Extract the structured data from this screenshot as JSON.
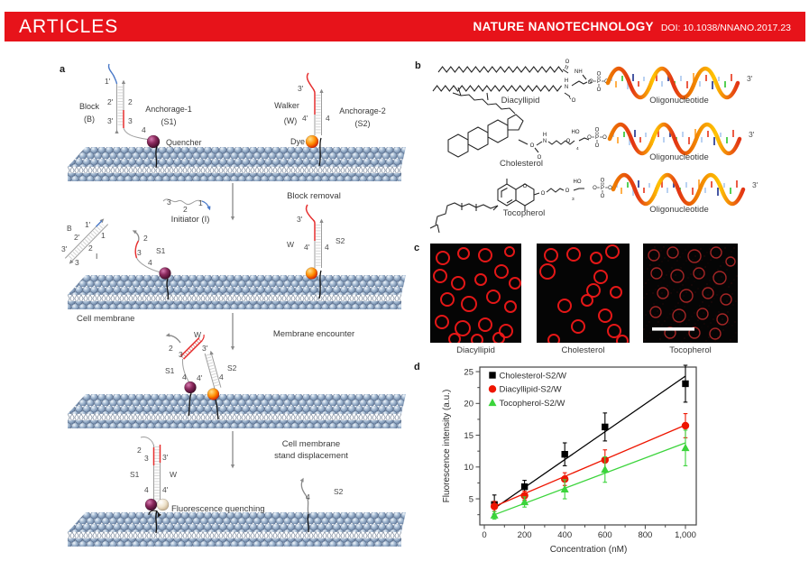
{
  "header": {
    "articles": "ARTICLES",
    "journal": "NATURE NANOTECHNOLOGY",
    "doi": "DOI: 10.1038/NNANO.2017.23",
    "bar_color": "#e7131a"
  },
  "panel_a": {
    "label": "a",
    "block": "Block",
    "block_abbr": "(B)",
    "anchorage1": "Anchorage-1",
    "s1_abbr": "(S1)",
    "quencher": "Quencher",
    "walker": "Walker",
    "walker_abbr": "(W)",
    "anchorage2": "Anchorage-2",
    "s2_abbr": "(S2)",
    "dye": "Dye",
    "initiator": "Initiator (I)",
    "block_removal": "Block removal",
    "cell_membrane": "Cell membrane",
    "membrane_encounter": "Membrane encounter",
    "displacement1": "Cell membrane",
    "displacement2": "stand displacement",
    "fluor_quench": "Fluorescence quenching",
    "s1": "S1",
    "s2": "S2",
    "w": "W",
    "b": "B",
    "i": "I",
    "n1": "1",
    "n2": "2",
    "n3": "3",
    "n4": "4",
    "p1": "1'",
    "p2": "2'",
    "p3": "3'",
    "p4": "4'"
  },
  "panel_b": {
    "label": "b",
    "lipid1": "Diacyllipid",
    "lipid2": "Cholesterol",
    "lipid3": "Tocopherol",
    "oligo": "Oligonucleotide",
    "three_prime": "3'",
    "atoms": {
      "o": "O",
      "p": "P",
      "n": "N",
      "h": "H",
      "nh": "NH",
      "ho": "HO",
      "sub4": "4",
      "sub3": "3"
    }
  },
  "panel_c": {
    "label": "c",
    "caption1": "Diacyllipid",
    "caption2": "Cholesterol",
    "caption3": "Tocopherol"
  },
  "panel_d": {
    "label": "d"
  },
  "chart_data": {
    "type": "scatter",
    "xlabel": "Concentration (nM)",
    "ylabel": "Fluorescence intensity (a.u.)",
    "xlim": [
      -25,
      1055
    ],
    "ylim": [
      0.9,
      25.7
    ],
    "x_ticks": [
      0,
      200,
      400,
      600,
      800,
      1000
    ],
    "x_tick_labels": [
      "0",
      "200",
      "400",
      "600",
      "800",
      "1,000"
    ],
    "y_ticks": [
      5,
      10,
      15,
      20,
      25
    ],
    "legend_position": "top-left",
    "grid": false,
    "x": [
      50,
      200,
      400,
      600,
      1000
    ],
    "series": [
      {
        "name": "Cholesterol-S2/W",
        "marker": "square",
        "color": "#000000",
        "values": [
          4.1,
          6.9,
          12.0,
          16.3,
          23.1
        ],
        "yerr": [
          1.5,
          1.0,
          1.8,
          2.2,
          2.9
        ],
        "fit": [
          [
            50,
            3.5
          ],
          [
            1000,
            24.3
          ]
        ]
      },
      {
        "name": "Diacyllipid-S2/W",
        "marker": "circle",
        "color": "#ee1500",
        "values": [
          3.8,
          5.5,
          8.1,
          11.1,
          16.5
        ],
        "yerr": [
          0.8,
          0.7,
          1.0,
          1.6,
          1.9
        ],
        "fit": [
          [
            50,
            3.8
          ],
          [
            1000,
            16.6
          ]
        ]
      },
      {
        "name": "Tocopherol-S2/W",
        "marker": "triangle",
        "color": "#3bd43b",
        "values": [
          2.4,
          4.5,
          6.5,
          9.6,
          13.0
        ],
        "yerr": [
          0.6,
          0.8,
          1.5,
          2.0,
          2.8
        ],
        "fit": [
          [
            50,
            2.5
          ],
          [
            1000,
            13.8
          ]
        ]
      }
    ]
  }
}
